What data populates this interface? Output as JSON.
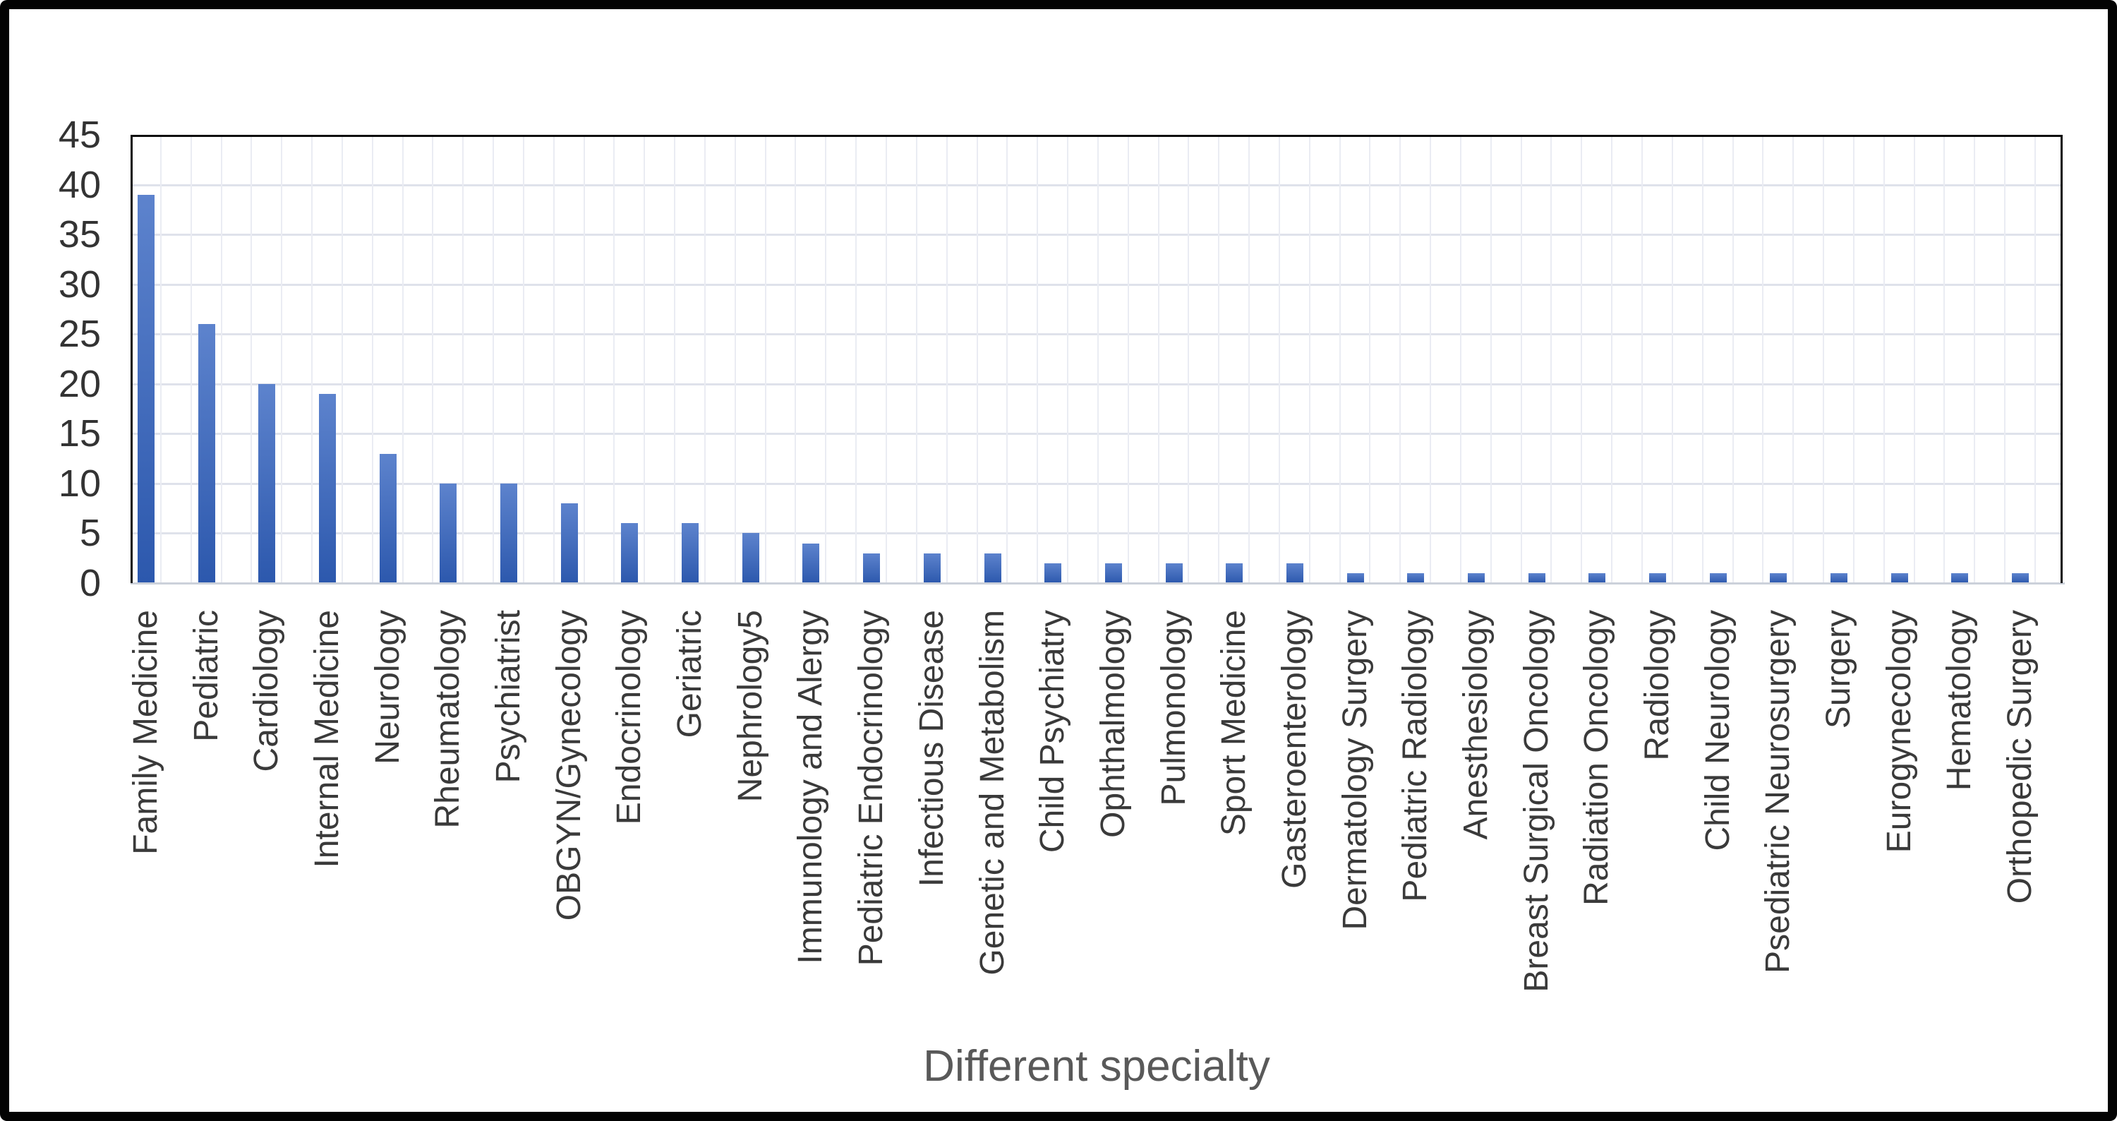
{
  "chart_data": {
    "type": "bar",
    "title": "",
    "xlabel": "Different specialty",
    "ylabel": "",
    "ylim": [
      0,
      45
    ],
    "y_ticks": [
      0,
      5,
      10,
      15,
      20,
      25,
      30,
      35,
      40,
      45
    ],
    "grid": true,
    "legend": "none",
    "categories": [
      "Family Medicine",
      "Pediatric",
      "Cardiology",
      "Internal Medicine",
      "Neurology",
      "Rheumatology",
      "Psychiatrist",
      "OBGYN/Gynecology",
      "Endocrinology",
      "Geriatric",
      "Nephrology5",
      "Immunology and Alergy",
      "Pediatric Endocrinology",
      "Infectious Disease",
      "Genetic and Metabolism",
      "Child Psychiatry",
      "Ophthalmology",
      "Pulmonology",
      "Sport Medicine",
      "Gasteroenterology",
      "Dermatology Surgery",
      "Pediatric Radiology",
      "Anesthesiology",
      "Breast Surgical Oncology",
      "Radiation Oncology",
      "Radiology",
      "Child Neurology",
      "Psediatric Neurosurgery",
      "Surgery",
      "Eurogynecology",
      "Hematology",
      "Orthopedic Surgery"
    ],
    "values": [
      39,
      26,
      20,
      19,
      13,
      10,
      10,
      8,
      6,
      6,
      5,
      4,
      3,
      3,
      3,
      2,
      2,
      2,
      2,
      2,
      1,
      1,
      1,
      1,
      1,
      1,
      1,
      1,
      1,
      1,
      1,
      1
    ],
    "colors": {
      "bar_gradient_top": "#5d83cd",
      "bar_gradient_bottom": "#2c58ad",
      "horizontal_gridline": "#dfe2eb",
      "vertical_gridline": "#eaecf3",
      "axis_line": "#ccd1da",
      "plot_border": "#0d0d0d",
      "tick_label": "#333333",
      "category_label": "#3a3a3a",
      "axis_title": "#595959",
      "outer_border": "#030303"
    }
  }
}
